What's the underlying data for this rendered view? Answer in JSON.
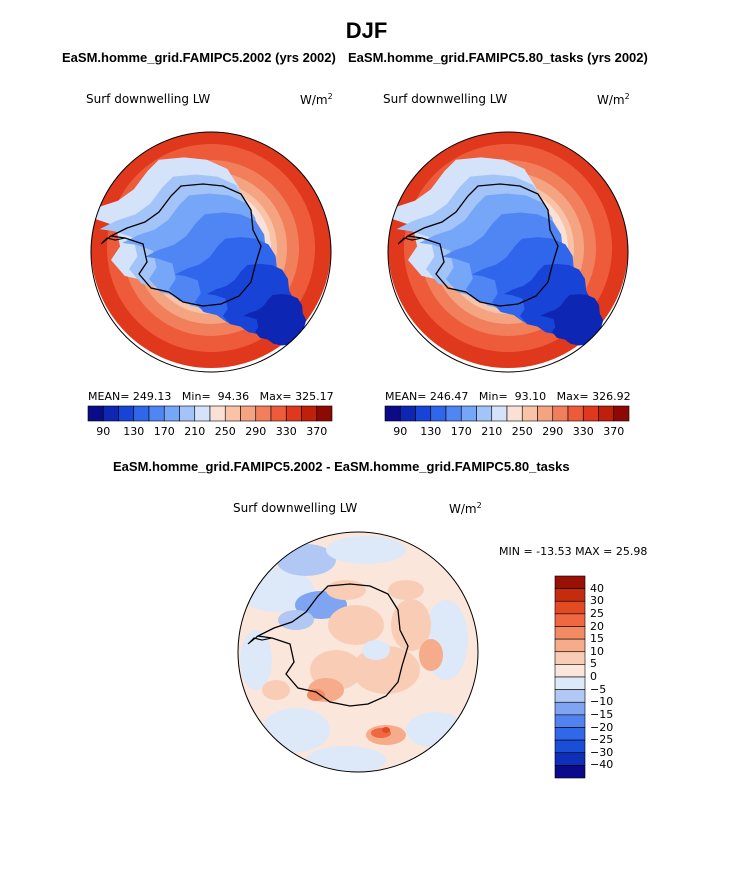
{
  "figure": {
    "title": "DJF",
    "diff_title": "EaSM.homme_grid.FAMIPC5.2002 - EaSM.homme_grid.FAMIPC5.80_tasks"
  },
  "colors": {
    "abs_palette": [
      "#0b0b87",
      "#0d26b4",
      "#1744d6",
      "#2f66ec",
      "#4f86f4",
      "#76a6f7",
      "#a3c4f8",
      "#d4e3fa",
      "#fbe1d5",
      "#f8c3a8",
      "#f5a482",
      "#f27f5c",
      "#ee5b3a",
      "#e0381c",
      "#c01f0a",
      "#8c0a03"
    ],
    "diff_palette": [
      "#0a0a8a",
      "#0f2fb8",
      "#1a4dd8",
      "#3168e8",
      "#5282ef",
      "#7ea4f2",
      "#b1c8f4",
      "#dde8f8",
      "#fbe6dc",
      "#f9cdb5",
      "#f6ab8b",
      "#f38a63",
      "#ef6841",
      "#e24a24",
      "#c52b0d",
      "#991105"
    ]
  },
  "chart_data": [
    {
      "type": "heatmap",
      "projection": "south-polar-stereographic",
      "case_title": "EaSM.homme_grid.FAMIPC5.2002 (yrs 2002)",
      "variable": "Surf downwelling LW",
      "units_base": "W/m",
      "units_exp": "2",
      "stats": {
        "mean_label": "MEAN=",
        "mean": "249.13",
        "min_label": "Min=",
        "min": "94.36",
        "max_label": "Max=",
        "max": "325.17"
      },
      "colorbar_ticks": [
        "90",
        "130",
        "170",
        "210",
        "250",
        "290",
        "330",
        "370"
      ],
      "contour_levels": [
        90,
        110,
        130,
        150,
        170,
        190,
        210,
        230,
        250,
        270,
        290,
        310,
        330,
        350,
        370
      ]
    },
    {
      "type": "heatmap",
      "projection": "south-polar-stereographic",
      "case_title": "EaSM.homme_grid.FAMIPC5.80_tasks (yrs 2002)",
      "variable": "Surf downwelling LW",
      "units_base": "W/m",
      "units_exp": "2",
      "stats": {
        "mean_label": "MEAN=",
        "mean": "246.47",
        "min_label": "Min=",
        "min": "93.10",
        "max_label": "Max=",
        "max": "326.92"
      },
      "colorbar_ticks": [
        "90",
        "130",
        "170",
        "210",
        "250",
        "290",
        "330",
        "370"
      ],
      "contour_levels": [
        90,
        110,
        130,
        150,
        170,
        190,
        210,
        230,
        250,
        270,
        290,
        310,
        330,
        350,
        370
      ]
    },
    {
      "type": "heatmap",
      "projection": "south-polar-stereographic",
      "case_title": "EaSM.homme_grid.FAMIPC5.2002 - EaSM.homme_grid.FAMIPC5.80_tasks",
      "variable": "Surf downwelling LW",
      "units_base": "W/m",
      "units_exp": "2",
      "stats_text": "MIN = -13.53 MAX =  25.98",
      "stats": {
        "min": -13.53,
        "max": 25.98
      },
      "colorbar_ticks": [
        "40",
        "30",
        "25",
        "20",
        "15",
        "10",
        "5",
        "0",
        "−5",
        "−10",
        "−15",
        "−20",
        "−25",
        "−30",
        "−40"
      ]
    }
  ]
}
